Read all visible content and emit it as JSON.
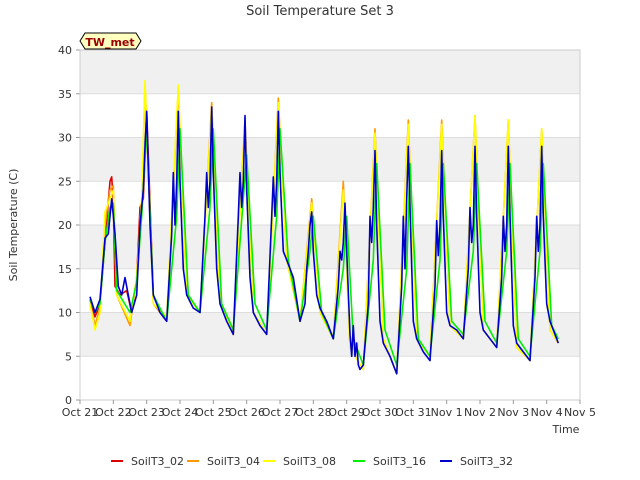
{
  "chart_data": {
    "type": "line",
    "title": "Soil Temperature Set 3",
    "xlabel": "Time",
    "ylabel": "Soil Temperature (C)",
    "ylim": [
      0,
      40
    ],
    "xlim": [
      0,
      15
    ],
    "yticks": [
      0,
      5,
      10,
      15,
      20,
      25,
      30,
      35,
      40
    ],
    "xtick_labels": [
      "Oct 21",
      "Oct 22",
      "Oct 23",
      "Oct 24",
      "Oct 25",
      "Oct 26",
      "Oct 27",
      "Oct 28",
      "Oct 29",
      "Oct 30",
      "Oct 31",
      "Nov 1",
      "Nov 2",
      "Nov 3",
      "Nov 4",
      "Nov 5"
    ],
    "grid": true,
    "background_bands": true,
    "legend_position": "bottom",
    "annotation": "TW_met",
    "x_unit_note": "x values are day offsets from Oct 21 as shown by the ticks",
    "series": [
      {
        "name": "SoilT3_02",
        "color": "#dd0000",
        "x": [
          0.3,
          0.45,
          0.6,
          0.75,
          0.9,
          0.95,
          1.0,
          1.05,
          1.2,
          1.4,
          1.55,
          1.7,
          1.8,
          1.9,
          2.0,
          2.2
        ],
        "values": [
          11.5,
          9.5,
          11.0,
          18.0,
          25.0,
          25.5,
          22.5,
          13.0,
          12.0,
          12.5,
          10.0,
          14.0,
          22.0,
          23.0,
          33.0,
          12.0
        ]
      },
      {
        "name": "SoilT3_04",
        "color": "#ff9900",
        "x": [
          0.3,
          0.45,
          0.6,
          0.75,
          0.9,
          1.0,
          1.1,
          1.5,
          1.7,
          1.85,
          1.95,
          2.2,
          2.6,
          2.95,
          3.2,
          3.6,
          3.95,
          4.2,
          4.6,
          4.95,
          5.2,
          5.6,
          5.95,
          6.2,
          6.6,
          6.95,
          7.2,
          7.6,
          7.9,
          8.1,
          8.5,
          8.85,
          9.1,
          9.5,
          9.85,
          10.1,
          10.5,
          10.85,
          11.1,
          11.5,
          11.85,
          12.1,
          12.5,
          12.85,
          13.1,
          13.5,
          13.85,
          14.1,
          14.35
        ],
        "values": [
          11.0,
          8.5,
          10.5,
          20.0,
          24.0,
          24.5,
          12.0,
          8.5,
          14.0,
          22.0,
          36.0,
          11.0,
          9.0,
          35.5,
          12.0,
          10.0,
          34.0,
          11.0,
          7.5,
          32.0,
          10.0,
          7.5,
          34.5,
          16.0,
          9.0,
          23.0,
          10.0,
          7.0,
          25.0,
          6.0,
          3.5,
          31.0,
          7.0,
          3.0,
          32.0,
          7.0,
          5.0,
          32.0,
          8.5,
          7.0,
          32.5,
          8.0,
          6.0,
          32.0,
          6.0,
          4.5,
          31.0,
          8.0,
          6.5
        ]
      },
      {
        "name": "SoilT3_08",
        "color": "#ffff00",
        "x": [
          0.3,
          0.45,
          0.6,
          0.75,
          0.9,
          1.0,
          1.1,
          1.5,
          1.7,
          1.85,
          1.95,
          2.2,
          2.6,
          2.95,
          3.2,
          3.6,
          3.95,
          4.2,
          4.6,
          4.95,
          5.2,
          5.6,
          5.95,
          6.2,
          6.6,
          6.95,
          7.2,
          7.6,
          7.9,
          8.1,
          8.5,
          8.85,
          9.1,
          9.5,
          9.85,
          10.1,
          10.5,
          10.85,
          11.1,
          11.5,
          11.85,
          12.1,
          12.5,
          12.85,
          13.1,
          13.5,
          13.85,
          14.1,
          14.35
        ],
        "values": [
          11.0,
          8.0,
          10.0,
          21.5,
          23.0,
          24.0,
          12.0,
          9.0,
          14.0,
          23.0,
          36.5,
          11.0,
          9.5,
          36.0,
          12.0,
          10.0,
          33.5,
          11.0,
          7.5,
          31.5,
          10.0,
          7.5,
          34.0,
          16.0,
          9.0,
          22.5,
          10.0,
          7.0,
          24.0,
          6.0,
          3.5,
          30.5,
          7.0,
          3.0,
          31.5,
          7.0,
          5.0,
          31.5,
          8.5,
          7.0,
          32.5,
          8.0,
          6.0,
          32.0,
          6.0,
          4.5,
          31.0,
          8.0,
          6.5
        ]
      },
      {
        "name": "SoilT3_16",
        "color": "#00ee00",
        "x": [
          0.3,
          0.45,
          0.6,
          0.75,
          0.9,
          1.0,
          1.1,
          1.5,
          1.7,
          1.85,
          2.0,
          2.2,
          2.6,
          2.9,
          3.0,
          3.25,
          3.6,
          3.9,
          4.0,
          4.25,
          4.6,
          4.9,
          5.0,
          5.25,
          5.6,
          5.9,
          6.0,
          6.25,
          6.6,
          6.9,
          7.0,
          7.25,
          7.6,
          7.9,
          8.0,
          8.2,
          8.5,
          8.8,
          8.9,
          9.15,
          9.5,
          9.8,
          9.9,
          10.15,
          10.5,
          10.8,
          10.9,
          11.15,
          11.5,
          11.8,
          11.9,
          12.15,
          12.5,
          12.8,
          12.9,
          13.15,
          13.5,
          13.8,
          13.9,
          14.15,
          14.35
        ],
        "values": [
          11.5,
          10.0,
          11.0,
          18.0,
          22.0,
          22.5,
          12.5,
          10.0,
          13.5,
          21.0,
          31.0,
          12.0,
          9.0,
          21.0,
          31.0,
          12.0,
          10.0,
          22.0,
          31.0,
          11.0,
          8.0,
          23.0,
          28.0,
          11.0,
          8.0,
          21.0,
          31.0,
          16.0,
          9.0,
          17.0,
          21.0,
          10.0,
          7.0,
          15.0,
          21.0,
          7.0,
          4.0,
          16.0,
          27.0,
          8.0,
          4.0,
          15.0,
          27.0,
          7.0,
          5.0,
          16.0,
          27.0,
          9.0,
          7.5,
          17.0,
          27.0,
          9.0,
          6.5,
          17.0,
          27.0,
          7.0,
          5.0,
          17.0,
          27.0,
          8.5,
          7.0
        ]
      },
      {
        "name": "SoilT3_32",
        "color": "#0000cc",
        "x": [
          0.3,
          0.45,
          0.6,
          0.75,
          0.85,
          0.95,
          1.05,
          1.15,
          1.25,
          1.35,
          1.45,
          1.55,
          1.7,
          1.8,
          1.9,
          1.95,
          2.0,
          2.1,
          2.2,
          2.4,
          2.6,
          2.75,
          2.8,
          2.85,
          2.9,
          2.95,
          3.0,
          3.1,
          3.2,
          3.4,
          3.6,
          3.75,
          3.8,
          3.85,
          3.9,
          3.95,
          4.0,
          4.1,
          4.2,
          4.4,
          4.6,
          4.75,
          4.8,
          4.85,
          4.9,
          4.95,
          5.0,
          5.1,
          5.2,
          5.4,
          5.6,
          5.75,
          5.8,
          5.85,
          5.9,
          5.95,
          6.0,
          6.1,
          6.2,
          6.4,
          6.6,
          6.75,
          6.8,
          6.85,
          6.9,
          6.95,
          7.0,
          7.1,
          7.2,
          7.4,
          7.6,
          7.75,
          7.8,
          7.85,
          7.9,
          7.95,
          8.0,
          8.1,
          8.15,
          8.2,
          8.25,
          8.3,
          8.35,
          8.4,
          8.5,
          8.65,
          8.7,
          8.75,
          8.8,
          8.85,
          8.9,
          9.0,
          9.1,
          9.3,
          9.5,
          9.65,
          9.7,
          9.75,
          9.8,
          9.85,
          9.9,
          10.0,
          10.1,
          10.3,
          10.5,
          10.65,
          10.7,
          10.75,
          10.8,
          10.85,
          10.9,
          11.0,
          11.1,
          11.3,
          11.5,
          11.65,
          11.7,
          11.75,
          11.8,
          11.85,
          11.9,
          12.0,
          12.1,
          12.3,
          12.5,
          12.65,
          12.7,
          12.75,
          12.8,
          12.85,
          12.9,
          13.0,
          13.1,
          13.3,
          13.5,
          13.65,
          13.7,
          13.75,
          13.8,
          13.85,
          13.9,
          14.0,
          14.1,
          14.3,
          14.35
        ],
        "values": [
          11.8,
          10.0,
          11.5,
          18.5,
          19.0,
          23.0,
          19.0,
          13.0,
          12.0,
          14.0,
          12.0,
          10.0,
          12.0,
          20.0,
          24.0,
          29.0,
          33.0,
          20.0,
          12.0,
          10.0,
          9.0,
          19.0,
          26.0,
          20.0,
          25.0,
          33.0,
          25.0,
          15.0,
          12.0,
          10.5,
          10.0,
          21.0,
          26.0,
          22.0,
          25.0,
          33.5,
          26.0,
          15.0,
          11.0,
          9.0,
          7.5,
          21.0,
          26.0,
          22.0,
          25.0,
          32.5,
          24.0,
          14.0,
          10.0,
          8.5,
          7.5,
          21.0,
          25.5,
          21.0,
          25.0,
          33.0,
          26.0,
          17.0,
          16.0,
          14.0,
          9.0,
          11.0,
          15.0,
          17.0,
          20.0,
          21.5,
          17.0,
          12.0,
          10.5,
          9.0,
          7.0,
          13.0,
          17.0,
          16.0,
          18.0,
          22.5,
          17.0,
          7.5,
          5.0,
          8.5,
          5.0,
          6.5,
          4.0,
          3.5,
          4.0,
          11.0,
          21.0,
          18.0,
          22.0,
          28.5,
          20.0,
          9.0,
          6.5,
          5.0,
          3.0,
          13.0,
          21.0,
          15.0,
          23.0,
          29.0,
          22.0,
          9.0,
          7.0,
          5.5,
          4.5,
          13.0,
          20.5,
          16.5,
          20.0,
          28.5,
          21.0,
          10.0,
          8.5,
          8.0,
          7.0,
          15.0,
          22.0,
          18.0,
          20.0,
          29.0,
          21.0,
          10.0,
          8.0,
          7.0,
          6.0,
          14.0,
          21.0,
          17.0,
          20.0,
          29.0,
          21.0,
          8.5,
          6.5,
          5.5,
          4.5,
          14.0,
          21.0,
          17.0,
          20.0,
          29.0,
          21.0,
          11.0,
          9.0,
          7.0,
          6.5
        ]
      }
    ]
  }
}
